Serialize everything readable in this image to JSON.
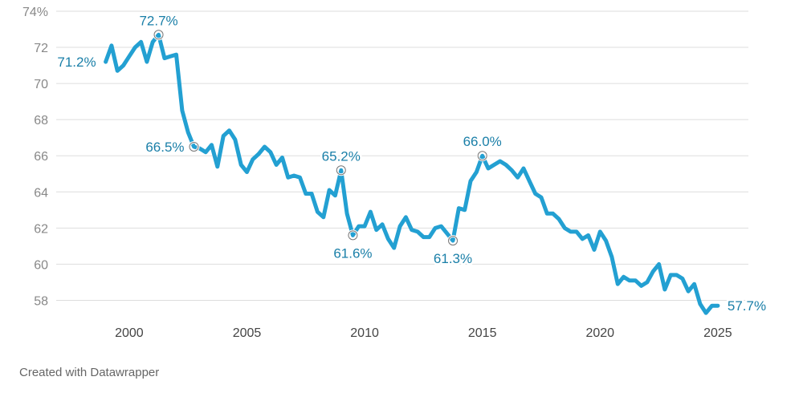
{
  "chart_data": {
    "type": "line",
    "ylim": [
      57,
      74
    ],
    "xlim": [
      1996.9,
      2026.3
    ],
    "y_ticks": [
      {
        "value": 74,
        "label": "74%"
      },
      {
        "value": 72,
        "label": "72"
      },
      {
        "value": 70,
        "label": "70"
      },
      {
        "value": 68,
        "label": "68"
      },
      {
        "value": 66,
        "label": "66"
      },
      {
        "value": 64,
        "label": "64"
      },
      {
        "value": 62,
        "label": "62"
      },
      {
        "value": 60,
        "label": "60"
      },
      {
        "value": 58,
        "label": "58"
      }
    ],
    "x_ticks": [
      {
        "value": 2000,
        "label": "2000"
      },
      {
        "value": 2005,
        "label": "2005"
      },
      {
        "value": 2010,
        "label": "2010"
      },
      {
        "value": 2015,
        "label": "2015"
      },
      {
        "value": 2020,
        "label": "2020"
      },
      {
        "value": 2025,
        "label": "2025"
      }
    ],
    "grid": true,
    "line_color": "#23a0d2",
    "annotation_color": "#1a7fa8",
    "series": [
      {
        "x": [
          1999.0,
          1999.25,
          1999.5,
          1999.75,
          2000.0,
          2000.25,
          2000.5,
          2000.75,
          2001.0,
          2001.25,
          2001.5,
          2001.75,
          2002.0,
          2002.25,
          2002.5,
          2002.75,
          2003.0,
          2003.25,
          2003.5,
          2003.75,
          2004.0,
          2004.25,
          2004.5,
          2004.75,
          2005.0,
          2005.25,
          2005.5,
          2005.75,
          2006.0,
          2006.25,
          2006.5,
          2006.75,
          2007.0,
          2007.25,
          2007.5,
          2007.75,
          2008.0,
          2008.25,
          2008.5,
          2008.75,
          2009.0,
          2009.25,
          2009.5,
          2009.75,
          2010.0,
          2010.25,
          2010.5,
          2010.75,
          2011.0,
          2011.25,
          2011.5,
          2011.75,
          2012.0,
          2012.25,
          2012.5,
          2012.75,
          2013.0,
          2013.25,
          2013.5,
          2013.75,
          2014.0,
          2014.25,
          2014.5,
          2014.75,
          2015.0,
          2015.25,
          2015.5,
          2015.75,
          2016.0,
          2016.25,
          2016.5,
          2016.75,
          2017.0,
          2017.25,
          2017.5,
          2017.75,
          2018.0,
          2018.25,
          2018.5,
          2018.75,
          2019.0,
          2019.25,
          2019.5,
          2019.75,
          2020.0,
          2020.25,
          2020.5,
          2020.75,
          2021.0,
          2021.25,
          2021.5,
          2021.75,
          2022.0,
          2022.25,
          2022.5,
          2022.75,
          2023.0,
          2023.25,
          2023.5,
          2023.75,
          2024.0,
          2024.25,
          2024.5,
          2024.75,
          2025.0
        ],
        "y": [
          71.2,
          72.1,
          70.7,
          71.0,
          71.5,
          72.0,
          72.3,
          71.2,
          72.3,
          72.7,
          71.4,
          71.5,
          71.6,
          68.5,
          67.3,
          66.5,
          66.4,
          66.2,
          66.6,
          65.4,
          67.1,
          67.4,
          66.9,
          65.5,
          65.1,
          65.8,
          66.1,
          66.5,
          66.2,
          65.5,
          65.9,
          64.8,
          64.9,
          64.8,
          63.9,
          63.9,
          62.9,
          62.6,
          64.1,
          63.8,
          65.2,
          62.8,
          61.6,
          62.1,
          62.1,
          62.9,
          61.9,
          62.2,
          61.4,
          60.9,
          62.1,
          62.6,
          61.9,
          61.8,
          61.5,
          61.5,
          62.0,
          62.1,
          61.7,
          61.3,
          63.1,
          63.0,
          64.6,
          65.1,
          66.0,
          65.3,
          65.5,
          65.7,
          65.5,
          65.2,
          64.8,
          65.3,
          64.6,
          63.9,
          63.7,
          62.8,
          62.8,
          62.5,
          62.0,
          61.8,
          61.8,
          61.4,
          61.6,
          60.8,
          61.8,
          61.3,
          60.4,
          58.9,
          59.3,
          59.1,
          59.1,
          58.8,
          59.0,
          59.6,
          60.0,
          58.6,
          59.4,
          59.4,
          59.2,
          58.5,
          58.9,
          57.8,
          57.3,
          57.7,
          57.7
        ]
      }
    ],
    "annotations": [
      {
        "x": 1999.0,
        "y": 71.2,
        "label": "71.2%",
        "marker": false,
        "pos": "left"
      },
      {
        "x": 2001.25,
        "y": 72.7,
        "label": "72.7%",
        "marker": true,
        "pos": "above"
      },
      {
        "x": 2002.75,
        "y": 66.5,
        "label": "66.5%",
        "marker": true,
        "pos": "left"
      },
      {
        "x": 2009.0,
        "y": 65.2,
        "label": "65.2%",
        "marker": true,
        "pos": "above"
      },
      {
        "x": 2009.5,
        "y": 61.6,
        "label": "61.6%",
        "marker": true,
        "pos": "below"
      },
      {
        "x": 2013.75,
        "y": 61.3,
        "label": "61.3%",
        "marker": true,
        "pos": "below"
      },
      {
        "x": 2015.0,
        "y": 66.0,
        "label": "66.0%",
        "marker": true,
        "pos": "above"
      },
      {
        "x": 2025.0,
        "y": 57.7,
        "label": "57.7%",
        "marker": false,
        "pos": "right"
      }
    ]
  },
  "footer": {
    "credit": "Created with Datawrapper"
  }
}
